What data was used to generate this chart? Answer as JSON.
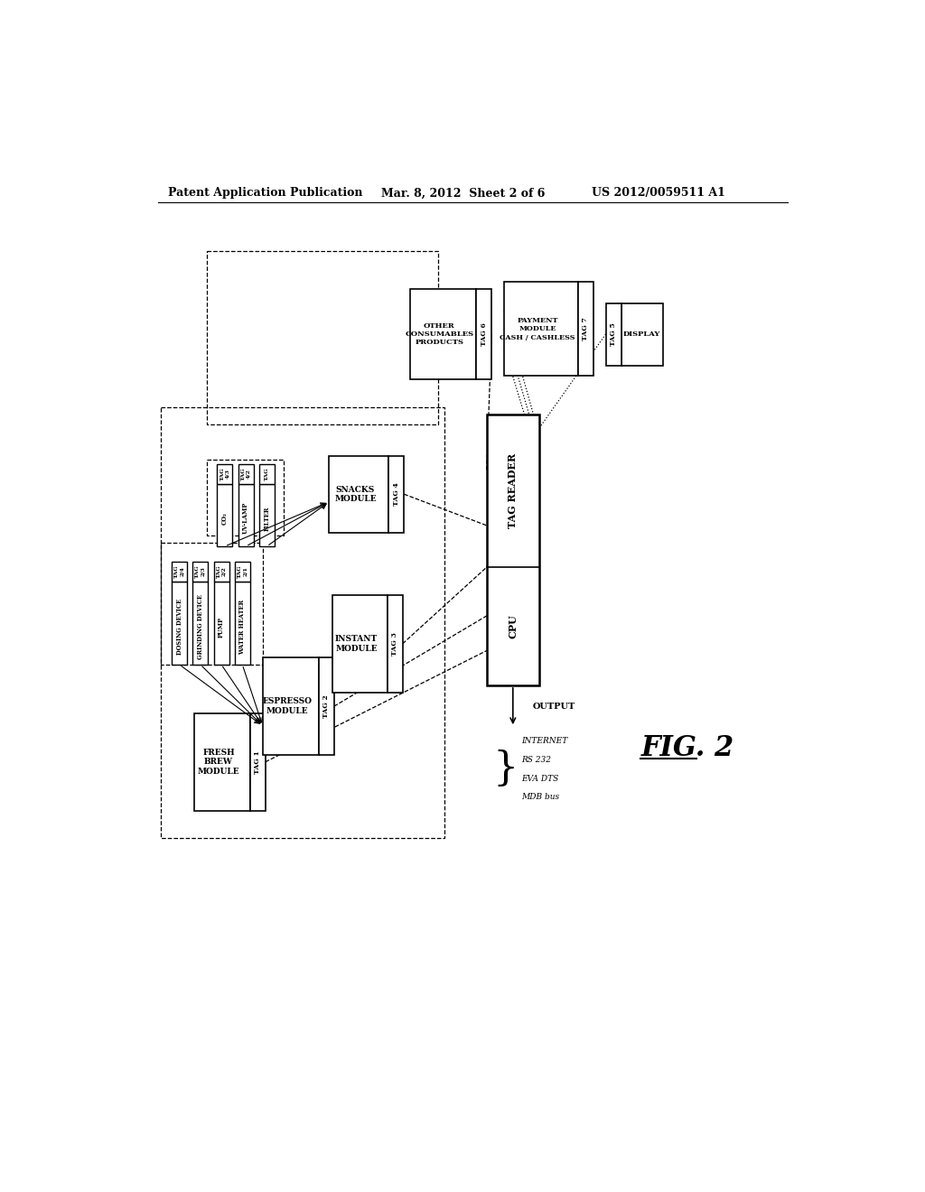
{
  "bg_color": "#ffffff",
  "header_left": "Patent Application Publication",
  "header_mid": "Mar. 8, 2012  Sheet 2 of 6",
  "header_right": "US 2012/0059511 A1",
  "figure_label": "FIG. 2"
}
